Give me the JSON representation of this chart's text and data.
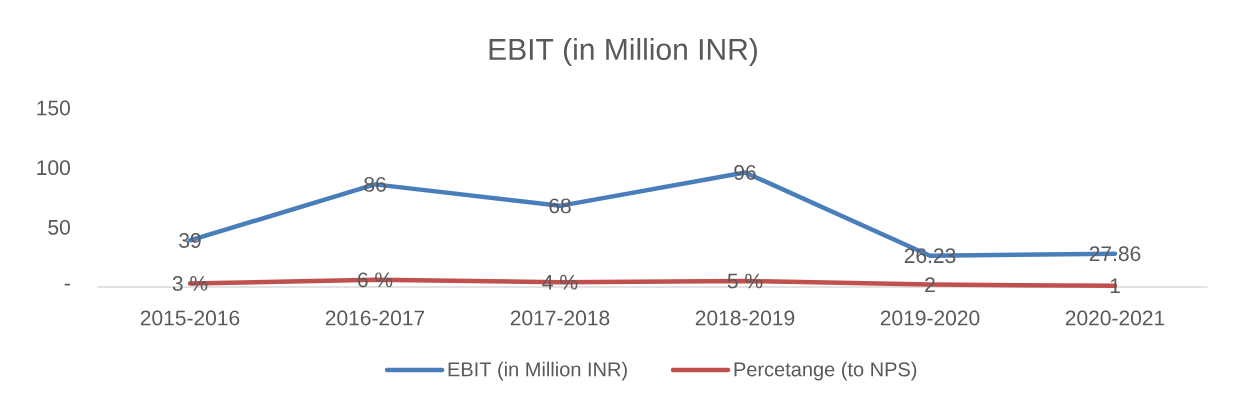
{
  "chart_data": {
    "type": "line",
    "title": "EBIT (in Million INR)",
    "categories": [
      "2015-2016",
      "2016-2017",
      "2017-2018",
      "2018-2019",
      "2019-2020",
      "2020-2021"
    ],
    "series": [
      {
        "name": "EBIT (in Million INR)",
        "color": "#4a7ebb",
        "values": [
          39,
          86,
          68,
          96,
          26.23,
          27.86
        ],
        "value_labels": [
          "39",
          "86",
          "68",
          "96",
          "26.23",
          "27.86"
        ]
      },
      {
        "name": "Percetange (to NPS)",
        "color": "#c0504d",
        "values": [
          3,
          6,
          4,
          5,
          2,
          1
        ],
        "value_labels": [
          "3 %",
          "6 %",
          "4 %",
          "5 %",
          "2",
          "1"
        ]
      }
    ],
    "ylim": [
      0,
      150
    ],
    "yticks": [
      {
        "value": 0,
        "label": "-"
      },
      50,
      100,
      150
    ],
    "legend": "bottom",
    "marker": "none",
    "line_style": "solid"
  }
}
